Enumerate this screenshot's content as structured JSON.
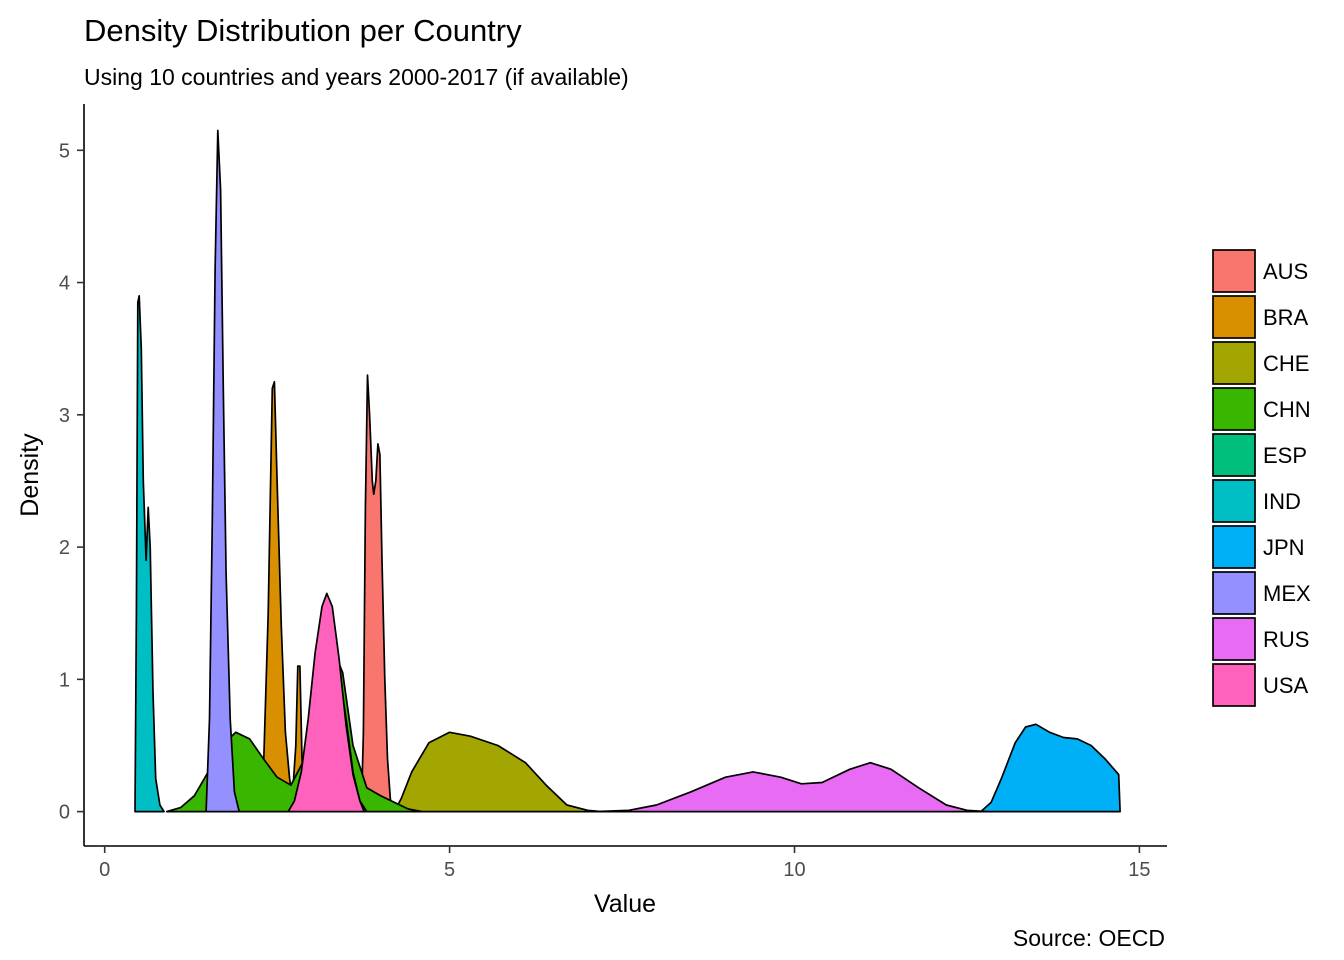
{
  "chart_data": {
    "type": "area",
    "title": "Density Distribution per Country",
    "subtitle": "Using 10 countries and years 2000-2017 (if available)",
    "xlabel": "Value",
    "ylabel": "Density",
    "caption": "Source: OECD",
    "xlim": [
      -0.3,
      15.4
    ],
    "ylim": [
      -0.26,
      5.35
    ],
    "xticks": [
      0,
      5,
      10,
      15
    ],
    "yticks": [
      0,
      1,
      2,
      3,
      4,
      5
    ],
    "grid": false,
    "legend_position": "right",
    "series": [
      {
        "name": "AUS",
        "color": "#F8766D",
        "points": [
          [
            3.72,
            0
          ],
          [
            3.75,
            0.6
          ],
          [
            3.78,
            2.3
          ],
          [
            3.81,
            3.3
          ],
          [
            3.84,
            3.0
          ],
          [
            3.88,
            2.5
          ],
          [
            3.9,
            2.4
          ],
          [
            3.93,
            2.5
          ],
          [
            3.96,
            2.78
          ],
          [
            3.99,
            2.7
          ],
          [
            4.02,
            1.9
          ],
          [
            4.06,
            1.0
          ],
          [
            4.1,
            0.4
          ],
          [
            4.14,
            0.1
          ],
          [
            4.17,
            0
          ]
        ]
      },
      {
        "name": "BRA",
        "color": "#D89000",
        "points": [
          [
            2.27,
            0
          ],
          [
            2.3,
            0.3
          ],
          [
            2.37,
            1.5
          ],
          [
            2.43,
            3.2
          ],
          [
            2.46,
            3.25
          ],
          [
            2.5,
            2.5
          ],
          [
            2.56,
            1.4
          ],
          [
            2.62,
            0.6
          ],
          [
            2.68,
            0.25
          ],
          [
            2.72,
            0.1
          ],
          [
            2.77,
            0.5
          ],
          [
            2.8,
            1.1
          ],
          [
            2.83,
            1.1
          ],
          [
            2.86,
            0.4
          ],
          [
            2.9,
            0.1
          ],
          [
            2.94,
            0
          ]
        ]
      },
      {
        "name": "CHE",
        "color": "#A3A500",
        "points": [
          [
            4.2,
            0
          ],
          [
            4.3,
            0.1
          ],
          [
            4.45,
            0.3
          ],
          [
            4.7,
            0.52
          ],
          [
            5.0,
            0.6
          ],
          [
            5.3,
            0.57
          ],
          [
            5.7,
            0.5
          ],
          [
            6.1,
            0.37
          ],
          [
            6.4,
            0.2
          ],
          [
            6.7,
            0.05
          ],
          [
            7.0,
            0.01
          ],
          [
            7.2,
            0
          ]
        ]
      },
      {
        "name": "CHN",
        "color": "#39B600",
        "points": [
          [
            0.9,
            0
          ],
          [
            1.1,
            0.03
          ],
          [
            1.3,
            0.12
          ],
          [
            1.5,
            0.3
          ],
          [
            1.7,
            0.5
          ],
          [
            1.9,
            0.6
          ],
          [
            2.1,
            0.55
          ],
          [
            2.3,
            0.4
          ],
          [
            2.5,
            0.26
          ],
          [
            2.7,
            0.2
          ],
          [
            2.9,
            0.4
          ],
          [
            3.1,
            0.95
          ],
          [
            3.3,
            1.25
          ],
          [
            3.45,
            1.05
          ],
          [
            3.6,
            0.5
          ],
          [
            3.8,
            0.18
          ],
          [
            4.0,
            0.12
          ],
          [
            4.2,
            0.07
          ],
          [
            4.4,
            0.02
          ],
          [
            4.6,
            0
          ]
        ]
      },
      {
        "name": "ESP",
        "color": "#00BF7D",
        "points": [
          [
            2.8,
            0
          ],
          [
            2.9,
            0.15
          ],
          [
            3.0,
            0.55
          ],
          [
            3.1,
            1.0
          ],
          [
            3.2,
            1.28
          ],
          [
            3.3,
            1.25
          ],
          [
            3.4,
            1.05
          ],
          [
            3.5,
            0.7
          ],
          [
            3.6,
            0.3
          ],
          [
            3.7,
            0.08
          ],
          [
            3.8,
            0
          ]
        ]
      },
      {
        "name": "IND",
        "color": "#00BFC4",
        "points": [
          [
            0.44,
            0
          ],
          [
            0.46,
            1.5
          ],
          [
            0.48,
            3.85
          ],
          [
            0.5,
            3.9
          ],
          [
            0.53,
            3.5
          ],
          [
            0.56,
            2.5
          ],
          [
            0.6,
            1.9
          ],
          [
            0.63,
            2.3
          ],
          [
            0.66,
            2.0
          ],
          [
            0.7,
            0.9
          ],
          [
            0.74,
            0.25
          ],
          [
            0.8,
            0.05
          ],
          [
            0.86,
            0
          ]
        ]
      },
      {
        "name": "JPN",
        "color": "#00B0F6",
        "points": [
          [
            12.7,
            0
          ],
          [
            12.85,
            0.07
          ],
          [
            13.0,
            0.25
          ],
          [
            13.2,
            0.52
          ],
          [
            13.35,
            0.64
          ],
          [
            13.5,
            0.66
          ],
          [
            13.7,
            0.6
          ],
          [
            13.9,
            0.56
          ],
          [
            14.1,
            0.55
          ],
          [
            14.3,
            0.5
          ],
          [
            14.5,
            0.4
          ],
          [
            14.7,
            0.28
          ],
          [
            14.72,
            0
          ]
        ]
      },
      {
        "name": "MEX",
        "color": "#9590FF",
        "points": [
          [
            1.47,
            0
          ],
          [
            1.52,
            0.7
          ],
          [
            1.56,
            2.2
          ],
          [
            1.6,
            4.1
          ],
          [
            1.64,
            5.15
          ],
          [
            1.68,
            4.7
          ],
          [
            1.72,
            3.2
          ],
          [
            1.76,
            1.8
          ],
          [
            1.82,
            0.7
          ],
          [
            1.88,
            0.15
          ],
          [
            1.95,
            0
          ]
        ]
      },
      {
        "name": "RUS",
        "color": "#E76BF3",
        "points": [
          [
            7.1,
            0
          ],
          [
            7.6,
            0.01
          ],
          [
            8.0,
            0.05
          ],
          [
            8.5,
            0.15
          ],
          [
            9.0,
            0.26
          ],
          [
            9.4,
            0.3
          ],
          [
            9.8,
            0.26
          ],
          [
            10.1,
            0.21
          ],
          [
            10.4,
            0.22
          ],
          [
            10.8,
            0.32
          ],
          [
            11.1,
            0.37
          ],
          [
            11.4,
            0.32
          ],
          [
            11.8,
            0.18
          ],
          [
            12.2,
            0.05
          ],
          [
            12.5,
            0.01
          ],
          [
            12.8,
            0
          ]
        ]
      },
      {
        "name": "USA",
        "color": "#FF62BC",
        "points": [
          [
            2.66,
            0
          ],
          [
            2.75,
            0.08
          ],
          [
            2.85,
            0.3
          ],
          [
            2.95,
            0.7
          ],
          [
            3.05,
            1.2
          ],
          [
            3.15,
            1.55
          ],
          [
            3.22,
            1.65
          ],
          [
            3.3,
            1.55
          ],
          [
            3.4,
            1.15
          ],
          [
            3.5,
            0.65
          ],
          [
            3.6,
            0.28
          ],
          [
            3.7,
            0.08
          ],
          [
            3.76,
            0
          ]
        ]
      }
    ]
  }
}
